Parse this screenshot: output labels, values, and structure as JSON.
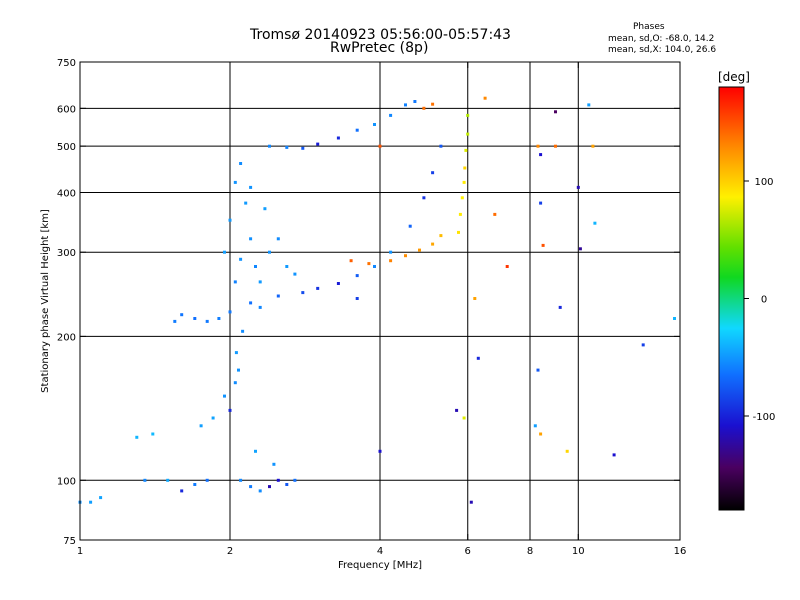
{
  "header": {
    "title": "Tromsø 20140923 05:56:00-05:57:43",
    "subtitle": "RwPretec (8p)",
    "phases_title": "Phases",
    "phases_line1": "mean, sd,O: -68.0, 14.2",
    "phases_line2": "mean, sd,X: 104.0, 26.6"
  },
  "colorbar": {
    "label": "[deg]",
    "range": [
      -180,
      180
    ],
    "ticks": [
      100,
      0,
      -100
    ],
    "tick_labels": [
      "100",
      "0",
      "-100"
    ]
  },
  "chart_data": {
    "type": "scatter",
    "xlabel": "Frequency [MHz]",
    "ylabel": "Stationary phase Virtual Height [km]",
    "xscale": "log",
    "yscale": "log",
    "xlim": [
      1,
      16
    ],
    "ylim": [
      75,
      750
    ],
    "xticks": [
      1,
      2,
      4,
      6,
      8,
      10,
      16
    ],
    "xtick_labels": [
      "1",
      "2",
      "4",
      "6",
      "8",
      "10",
      "16"
    ],
    "yticks": [
      75,
      100,
      200,
      300,
      400,
      500,
      600,
      750
    ],
    "ytick_labels": [
      "75",
      "100",
      "200",
      "300",
      "400",
      "500",
      "600",
      "750"
    ],
    "xgrid": [
      2,
      4,
      6,
      8,
      10
    ],
    "ygrid": [
      100,
      200,
      300,
      400,
      500,
      600
    ],
    "grid": true,
    "colorscale": "rainbow phase (deg)",
    "series": [
      {
        "trace": "lower F-trace (blue)",
        "points": [
          [
            1.55,
            215,
            -65
          ],
          [
            1.6,
            222,
            -68
          ],
          [
            1.7,
            218,
            -70
          ],
          [
            1.8,
            215,
            -66
          ],
          [
            1.9,
            218,
            -64
          ],
          [
            2.0,
            225,
            -66
          ],
          [
            2.2,
            235,
            -70
          ],
          [
            2.5,
            243,
            -75
          ],
          [
            2.8,
            247,
            -85
          ],
          [
            3.0,
            252,
            -95
          ],
          [
            3.3,
            258,
            -105
          ],
          [
            3.6,
            268,
            -78
          ],
          [
            3.9,
            280,
            -60
          ],
          [
            4.2,
            300,
            -55
          ],
          [
            4.6,
            340,
            -75
          ],
          [
            4.9,
            390,
            -95
          ],
          [
            5.1,
            440,
            -90
          ],
          [
            5.3,
            500,
            -80
          ]
        ]
      },
      {
        "trace": "mid-height orange trace",
        "points": [
          [
            3.5,
            288,
            145
          ],
          [
            3.8,
            284,
            138
          ],
          [
            4.2,
            288,
            132
          ],
          [
            4.5,
            295,
            128
          ],
          [
            4.8,
            303,
            124
          ],
          [
            5.1,
            312,
            118
          ],
          [
            5.3,
            325,
            110
          ]
        ]
      },
      {
        "trace": "upper trace (~500-620 km)",
        "points": [
          [
            2.4,
            500,
            -60
          ],
          [
            2.6,
            497,
            -62
          ],
          [
            2.8,
            495,
            -80
          ],
          [
            3.0,
            505,
            -105
          ],
          [
            3.3,
            520,
            -100
          ],
          [
            3.6,
            540,
            -70
          ],
          [
            3.9,
            555,
            -55
          ],
          [
            4.2,
            580,
            -60
          ],
          [
            4.5,
            610,
            -62
          ],
          [
            4.7,
            620,
            -66
          ],
          [
            4.9,
            600,
            140
          ],
          [
            5.1,
            612,
            138
          ]
        ]
      },
      {
        "trace": "X-mode cusp near 6 MHz",
        "points": [
          [
            5.75,
            330,
            95
          ],
          [
            5.8,
            360,
            92
          ],
          [
            5.85,
            390,
            90
          ],
          [
            5.9,
            420,
            92
          ],
          [
            5.92,
            450,
            100
          ],
          [
            5.95,
            490,
            80
          ],
          [
            6.0,
            530,
            70
          ],
          [
            6.0,
            580,
            65
          ]
        ]
      },
      {
        "trace": "low-frequency E/F1 cloud",
        "points": [
          [
            1.0,
            90,
            -55
          ],
          [
            1.05,
            90,
            -50
          ],
          [
            1.1,
            92,
            -48
          ],
          [
            1.3,
            123,
            -40
          ],
          [
            1.4,
            125,
            -38
          ],
          [
            1.35,
            100,
            -60
          ],
          [
            1.5,
            100,
            -45
          ],
          [
            1.6,
            95,
            -100
          ],
          [
            1.7,
            98,
            -65
          ],
          [
            1.8,
            100,
            -70
          ],
          [
            1.75,
            130,
            -50
          ],
          [
            1.85,
            135,
            -48
          ],
          [
            1.95,
            150,
            -55
          ],
          [
            2.0,
            140,
            -100
          ],
          [
            2.05,
            160,
            -58
          ],
          [
            2.1,
            100,
            -60
          ],
          [
            2.2,
            97,
            -65
          ],
          [
            2.3,
            95,
            -58
          ],
          [
            2.4,
            97,
            -120
          ],
          [
            2.5,
            100,
            -110
          ],
          [
            2.6,
            98,
            -80
          ],
          [
            2.7,
            100,
            -70
          ],
          [
            2.25,
            115,
            -48
          ],
          [
            2.45,
            108,
            -55
          ]
        ]
      },
      {
        "trace": "spread near 2 MHz",
        "points": [
          [
            1.95,
            300,
            -50
          ],
          [
            2.0,
            350,
            -52
          ],
          [
            2.05,
            420,
            -55
          ],
          [
            2.1,
            460,
            -58
          ],
          [
            2.15,
            380,
            -52
          ],
          [
            2.2,
            320,
            -56
          ],
          [
            2.25,
            280,
            -60
          ],
          [
            2.3,
            260,
            -52
          ],
          [
            2.1,
            290,
            -55
          ],
          [
            2.05,
            260,
            -62
          ],
          [
            2.2,
            410,
            -55
          ],
          [
            2.35,
            370,
            -50
          ],
          [
            2.4,
            300,
            -54
          ],
          [
            2.5,
            320,
            -58
          ],
          [
            2.6,
            280,
            -52
          ],
          [
            2.7,
            270,
            -55
          ],
          [
            2.3,
            230,
            -60
          ],
          [
            2.12,
            205,
            -58
          ],
          [
            2.06,
            185,
            -52
          ],
          [
            2.08,
            170,
            -55
          ]
        ]
      },
      {
        "trace": "scattered points",
        "points": [
          [
            6.2,
            240,
            120
          ],
          [
            6.1,
            90,
            -120
          ],
          [
            6.3,
            180,
            -100
          ],
          [
            6.5,
            630,
            130
          ],
          [
            6.8,
            360,
            140
          ],
          [
            7.2,
            280,
            160
          ],
          [
            8.3,
            500,
            130
          ],
          [
            8.4,
            480,
            -110
          ],
          [
            8.4,
            380,
            -90
          ],
          [
            8.5,
            310,
            150
          ],
          [
            8.3,
            170,
            -80
          ],
          [
            8.2,
            130,
            -50
          ],
          [
            8.4,
            125,
            120
          ],
          [
            9.0,
            590,
            -150
          ],
          [
            9.0,
            500,
            140
          ],
          [
            9.2,
            230,
            -100
          ],
          [
            10.0,
            410,
            -120
          ],
          [
            10.1,
            305,
            -130
          ],
          [
            10.5,
            610,
            -50
          ],
          [
            10.7,
            500,
            120
          ],
          [
            10.8,
            345,
            -40
          ],
          [
            11.8,
            113,
            -110
          ],
          [
            13.5,
            192,
            -90
          ],
          [
            15.6,
            218,
            -40
          ],
          [
            9.5,
            115,
            100
          ],
          [
            5.7,
            140,
            -120
          ],
          [
            5.9,
            135,
            80
          ],
          [
            4.0,
            115,
            -110
          ],
          [
            3.6,
            240,
            -90
          ],
          [
            4.0,
            500,
            150
          ]
        ]
      }
    ]
  }
}
